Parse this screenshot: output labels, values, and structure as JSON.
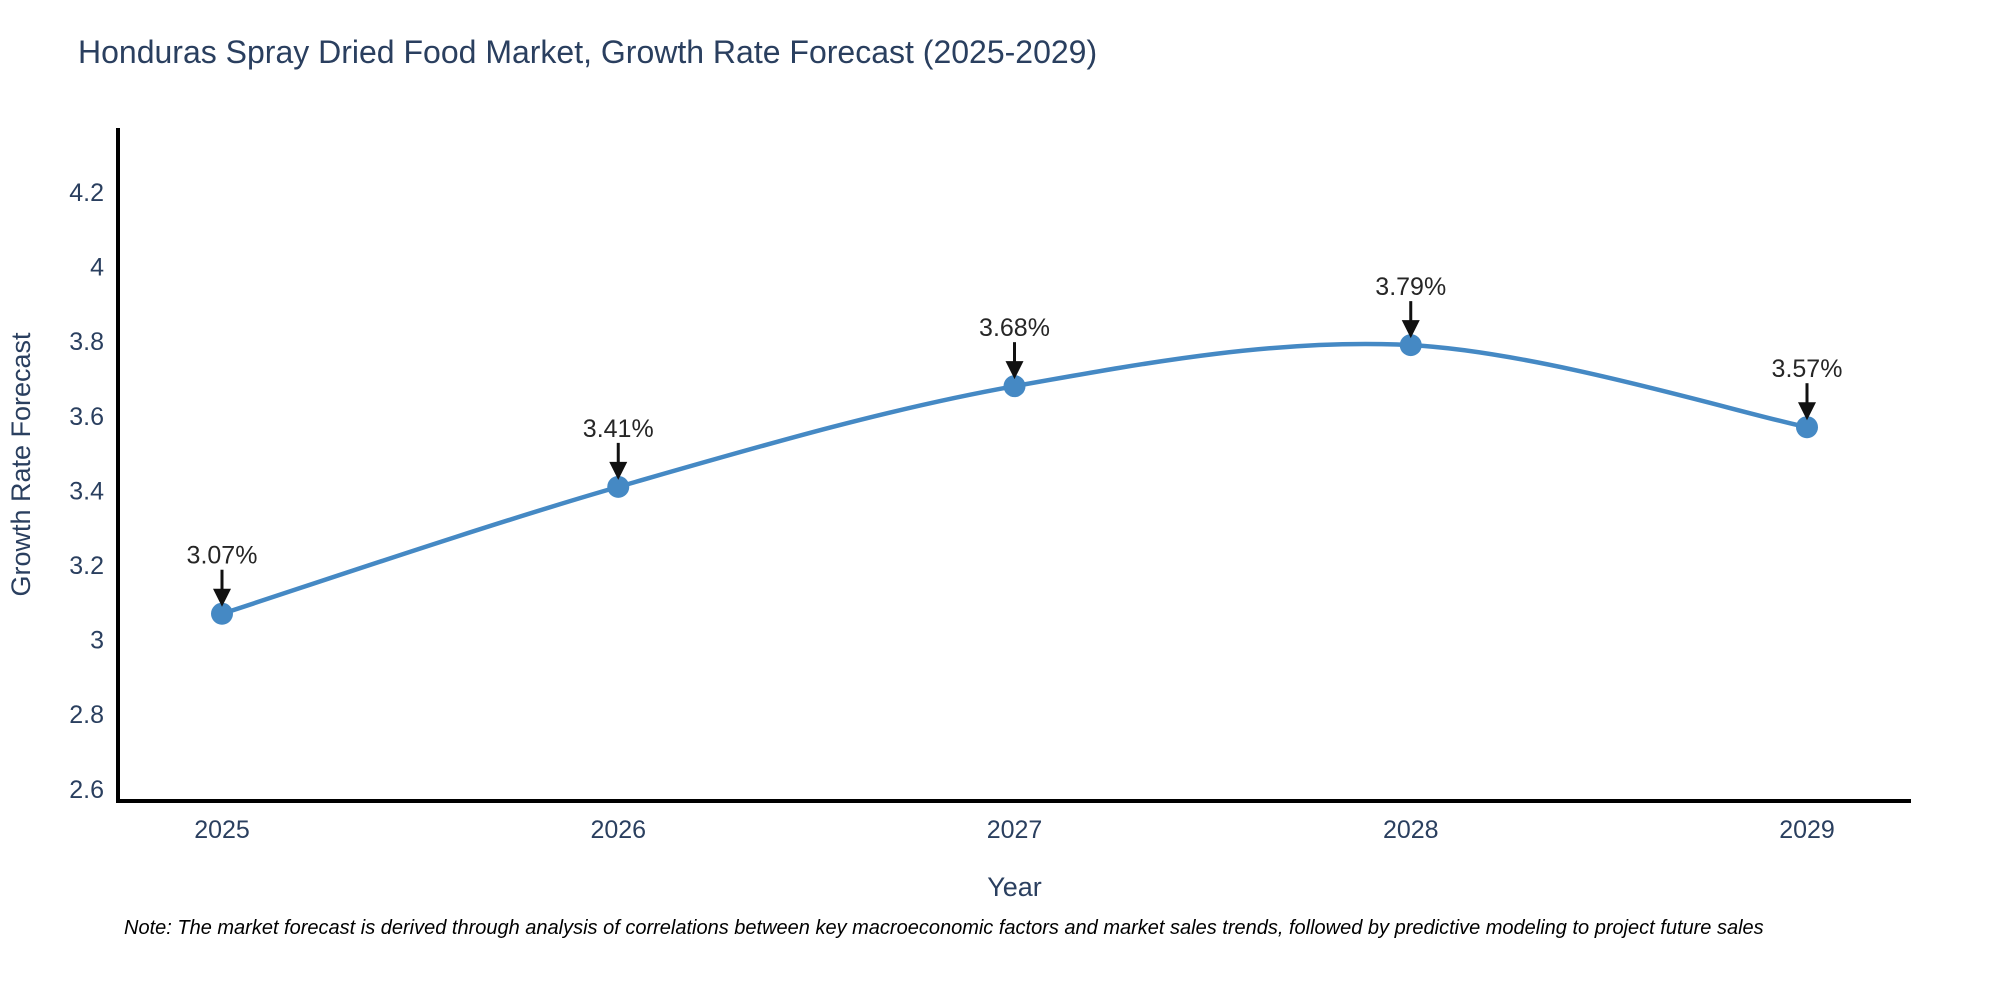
{
  "title": "Honduras Spray Dried Food Market, Growth Rate Forecast (2025-2029)",
  "note": "Note: The market forecast is derived through analysis of correlations between key macroeconomic factors and market sales trends, followed by predictive modeling to project future sales",
  "chart_data": {
    "type": "line",
    "line_shape": "spline",
    "title": "Honduras Spray Dried Food Market, Growth Rate Forecast (2025-2029)",
    "xlabel": "Year",
    "ylabel": "Growth Rate Forecast",
    "x": [
      2025,
      2026,
      2027,
      2028,
      2029
    ],
    "values": [
      3.07,
      3.41,
      3.68,
      3.79,
      3.57
    ],
    "point_labels": [
      "3.07%",
      "3.41%",
      "3.68%",
      "3.79%",
      "3.57%"
    ],
    "xtick_labels": [
      "2025",
      "2026",
      "2027",
      "2028",
      "2029"
    ],
    "yticks": [
      2.6,
      2.8,
      3,
      3.2,
      3.4,
      3.6,
      3.8,
      4,
      4.2
    ],
    "ytick_labels": [
      "2.6",
      "2.8",
      "3",
      "3.2",
      "3.4",
      "3.6",
      "3.8",
      "4",
      "4.2"
    ],
    "ylim": [
      2.568,
      4.372
    ],
    "grid": false,
    "legend": "none",
    "colors": {
      "line": "#4589c4",
      "marker": "#4589c4",
      "axis": "#000000",
      "text": "#2a3f5f",
      "annotation_text": "#262626",
      "arrow": "#111111",
      "background": "#ffffff"
    }
  }
}
